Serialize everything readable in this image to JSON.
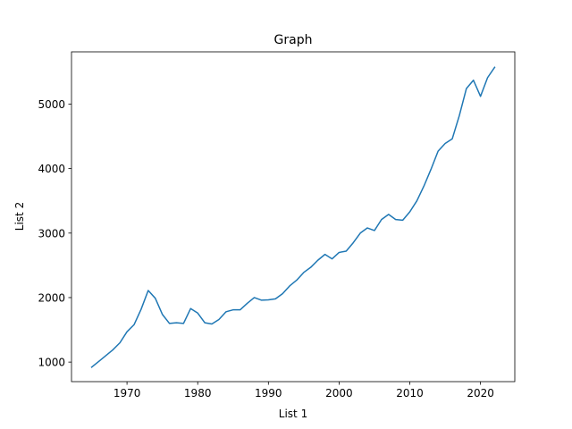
{
  "chart_data": {
    "type": "line",
    "title": "Graph",
    "xlabel": "List 1",
    "ylabel": "List 2",
    "xlim": [
      1962.15,
      2024.85
    ],
    "ylim": [
      697,
      5810
    ],
    "xticks": [
      1970,
      1980,
      1990,
      2000,
      2010,
      2020
    ],
    "yticks": [
      1000,
      2000,
      3000,
      4000,
      5000
    ],
    "grid": false,
    "legend": "none",
    "series": [
      {
        "color": "#1f77b4",
        "x": [
          1965,
          1966,
          1967,
          1968,
          1969,
          1970,
          1971,
          1972,
          1973,
          1974,
          1975,
          1976,
          1977,
          1978,
          1979,
          1980,
          1981,
          1982,
          1983,
          1984,
          1985,
          1986,
          1987,
          1988,
          1989,
          1990,
          1991,
          1992,
          1993,
          1994,
          1995,
          1996,
          1997,
          1998,
          1999,
          2000,
          2001,
          2002,
          2003,
          2004,
          2005,
          2006,
          2007,
          2008,
          2009,
          2010,
          2011,
          2012,
          2013,
          2014,
          2015,
          2016,
          2017,
          2018,
          2019,
          2020,
          2021,
          2022
        ],
        "y": [
          921,
          1010,
          1100,
          1190,
          1300,
          1470,
          1580,
          1820,
          2110,
          1990,
          1740,
          1600,
          1610,
          1600,
          1830,
          1760,
          1610,
          1590,
          1660,
          1780,
          1810,
          1810,
          1910,
          2000,
          1960,
          1965,
          1980,
          2060,
          2180,
          2270,
          2390,
          2470,
          2580,
          2670,
          2600,
          2700,
          2720,
          2850,
          3000,
          3080,
          3040,
          3210,
          3290,
          3210,
          3200,
          3330,
          3500,
          3730,
          3990,
          4270,
          4390,
          4460,
          4820,
          5240,
          5370,
          5120,
          5410,
          5570
        ]
      }
    ]
  }
}
